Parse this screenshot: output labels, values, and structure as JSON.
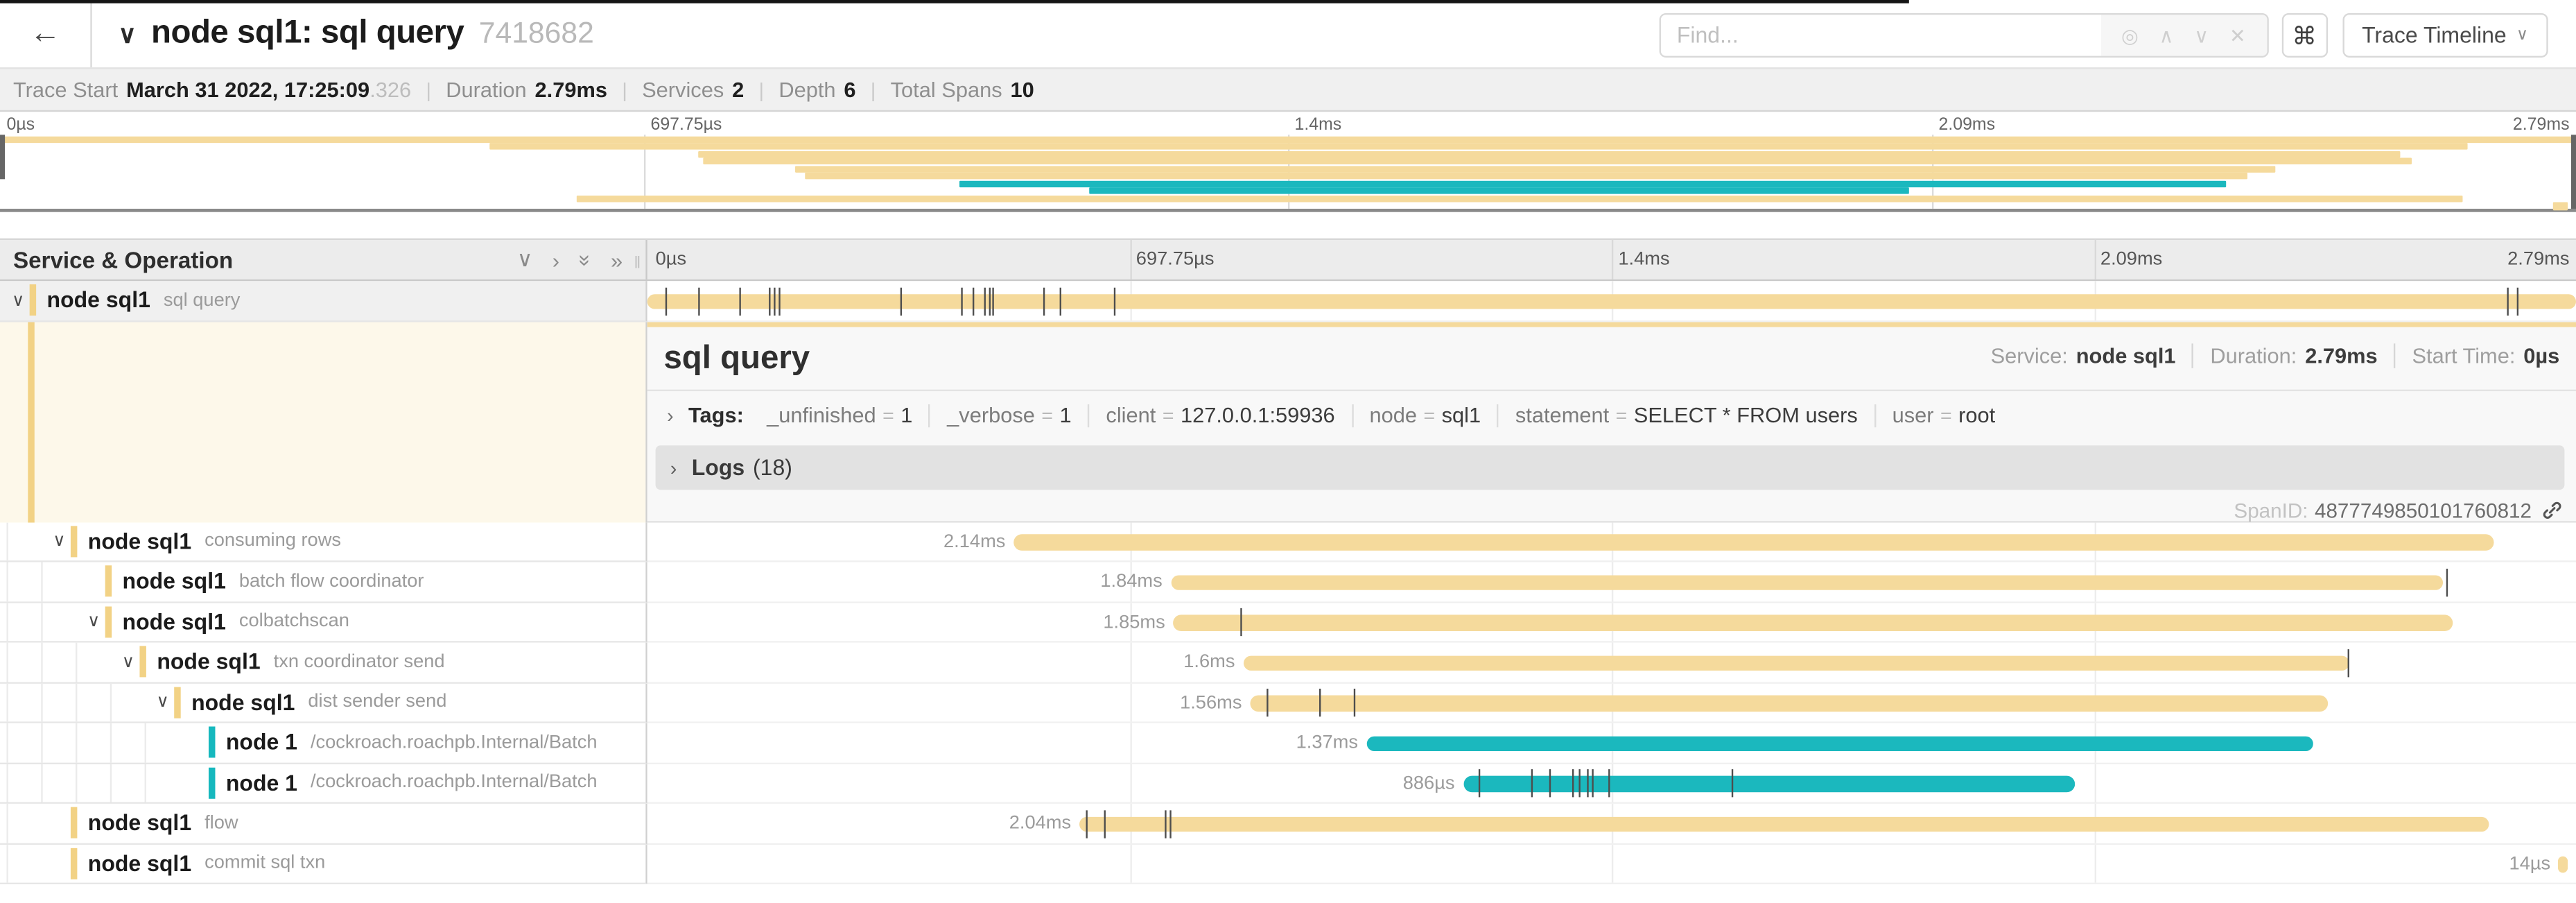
{
  "header": {
    "back_arrow": "←",
    "collapse_chevron": "∨",
    "title": "node sql1: sql query",
    "trace_id": "7418682",
    "find_placeholder": "Find...",
    "find_icons": [
      "◎",
      "∧",
      "∨",
      "✕"
    ],
    "cmd_label": "⌘",
    "view_selector_label": "Trace Timeline",
    "view_selector_chevron": "∨"
  },
  "infobar": {
    "items": [
      {
        "label": "Trace Start",
        "value": "March 31 2022, 17:25:09",
        "suffix": ".326"
      },
      {
        "label": "Duration",
        "value": "2.79ms"
      },
      {
        "label": "Services",
        "value": "2"
      },
      {
        "label": "Depth",
        "value": "6"
      },
      {
        "label": "Total Spans",
        "value": "10"
      }
    ]
  },
  "timeline": {
    "duration_ms": 2.79,
    "axis_ticks": [
      {
        "label": "0µs",
        "pct": 0
      },
      {
        "label": "697.75µs",
        "pct": 25
      },
      {
        "label": "1.4ms",
        "pct": 50
      },
      {
        "label": "2.09ms",
        "pct": 75
      },
      {
        "label": "2.79ms",
        "pct": 100
      }
    ],
    "left_header": "Service & Operation",
    "collapse_icons": [
      "∨",
      "›",
      "»down",
      "»"
    ]
  },
  "colors": {
    "tan": "#F5DA9C",
    "teal": "#1BB8BE",
    "tan_swatch": "#F2D285",
    "teal_swatch": "#16B8BE"
  },
  "spans": [
    {
      "service": "node sql1",
      "operation": "sql query",
      "depth": 0,
      "color": "tan",
      "chevron": true,
      "selected": true,
      "start_ms": 0,
      "duration_ms": 2.79,
      "duration_label": "",
      "ticks_ms": [
        0.026,
        0.074,
        0.133,
        0.176,
        0.182,
        0.19,
        0.366,
        0.454,
        0.471,
        0.487,
        0.494,
        0.499,
        0.573,
        0.597,
        0.675,
        2.69,
        2.705
      ]
    },
    {
      "service": "node sql1",
      "operation": "consuming rows",
      "depth": 1,
      "color": "tan",
      "chevron": true,
      "start_ms": 0.53,
      "duration_ms": 2.14,
      "duration_label": "2.14ms",
      "ticks_ms": []
    },
    {
      "service": "node sql1",
      "operation": "batch flow coordinator",
      "depth": 2,
      "color": "tan",
      "chevron": false,
      "start_ms": 0.757,
      "duration_ms": 1.84,
      "duration_label": "1.84ms",
      "ticks_ms": [
        2.602
      ]
    },
    {
      "service": "node sql1",
      "operation": "colbatchscan",
      "depth": 2,
      "color": "tan",
      "chevron": true,
      "start_ms": 0.761,
      "duration_ms": 1.85,
      "duration_label": "1.85ms",
      "ticks_ms": [
        0.858
      ]
    },
    {
      "service": "node sql1",
      "operation": "txn coordinator send",
      "depth": 3,
      "color": "tan",
      "chevron": true,
      "start_ms": 0.862,
      "duration_ms": 1.6,
      "duration_label": "1.6ms",
      "ticks_ms": [
        2.46
      ]
    },
    {
      "service": "node sql1",
      "operation": "dist sender send",
      "depth": 4,
      "color": "tan",
      "chevron": true,
      "start_ms": 0.872,
      "duration_ms": 1.56,
      "duration_label": "1.56ms",
      "ticks_ms": [
        0.896,
        0.972,
        1.022
      ]
    },
    {
      "service": "node 1",
      "operation": "/cockroach.roachpb.Internal/Batch",
      "depth": 5,
      "color": "teal",
      "chevron": false,
      "start_ms": 1.04,
      "duration_ms": 1.37,
      "duration_label": "1.37ms",
      "ticks_ms": []
    },
    {
      "service": "node 1",
      "operation": "/cockroach.roachpb.Internal/Batch",
      "depth": 5,
      "color": "teal",
      "chevron": false,
      "start_ms": 1.18,
      "duration_ms": 0.886,
      "duration_label": "886µs",
      "ticks_ms": [
        1.202,
        1.278,
        1.305,
        1.338,
        1.347,
        1.359,
        1.366,
        1.39,
        1.568
      ]
    },
    {
      "service": "node sql1",
      "operation": "flow",
      "depth": 1,
      "color": "tan",
      "chevron": false,
      "start_ms": 0.625,
      "duration_ms": 2.04,
      "duration_label": "2.04ms",
      "ticks_ms": [
        0.634,
        0.661,
        0.749,
        0.756
      ]
    },
    {
      "service": "node sql1",
      "operation": "commit sql txn",
      "depth": 1,
      "color": "tan",
      "chevron": false,
      "start_ms": 2.765,
      "duration_ms": 0.014,
      "duration_label": "14µs",
      "ticks_ms": []
    }
  ],
  "detail": {
    "title": "sql query",
    "service_label": "Service:",
    "service_value": "node sql1",
    "duration_label": "Duration:",
    "duration_value": "2.79ms",
    "start_label": "Start Time:",
    "start_value": "0µs",
    "tags_caret": "›",
    "tags_label": "Tags:",
    "tags": [
      {
        "key": "_unfinished",
        "value": "1"
      },
      {
        "key": "_verbose",
        "value": "1"
      },
      {
        "key": "client",
        "value": "127.0.0.1:59936"
      },
      {
        "key": "node",
        "value": "sql1"
      },
      {
        "key": "statement",
        "value": "SELECT * FROM users"
      },
      {
        "key": "user",
        "value": "root"
      }
    ],
    "logs_caret": "›",
    "logs_label": "Logs",
    "logs_count": "(18)",
    "spanid_label": "SpanID:",
    "spanid_value": "4877749850101760812"
  }
}
